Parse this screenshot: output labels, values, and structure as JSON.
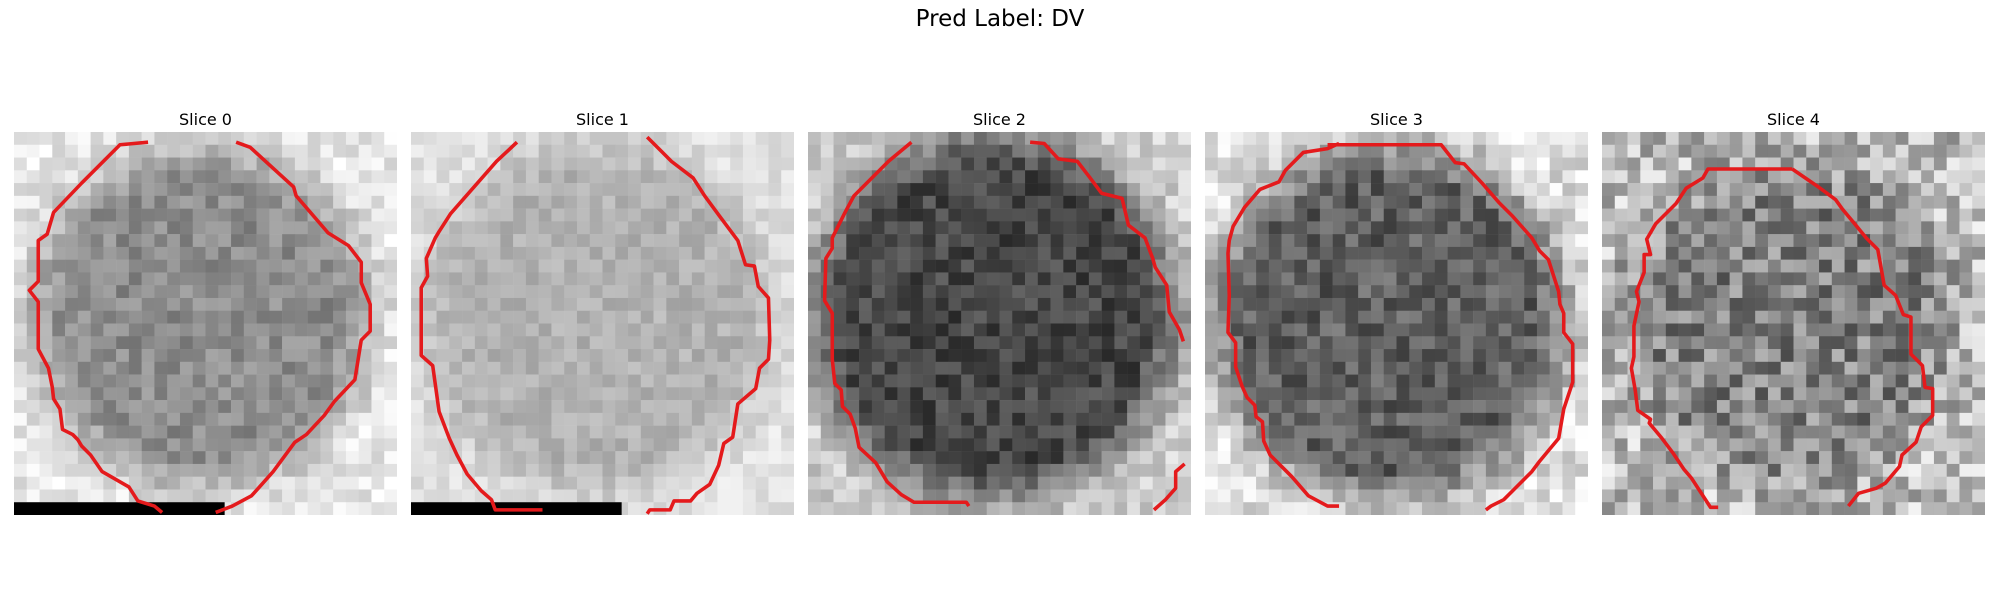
{
  "figure": {
    "title": "Pred Label: DV"
  },
  "panels": [
    {
      "title": "Slice 0",
      "tone": "mid",
      "contour": "red",
      "bar": true
    },
    {
      "title": "Slice 1",
      "tone": "light",
      "contour": "red",
      "bar": true
    },
    {
      "title": "Slice 2",
      "tone": "dark",
      "contour": "red",
      "bar": false
    },
    {
      "title": "Slice 3",
      "tone": "mid-dark",
      "contour": "red",
      "bar": false
    },
    {
      "title": "Slice 4",
      "tone": "noisy",
      "contour": "red",
      "bar": false
    }
  ],
  "colors": {
    "contour": "#e41a1c",
    "background": "#ffffff"
  }
}
